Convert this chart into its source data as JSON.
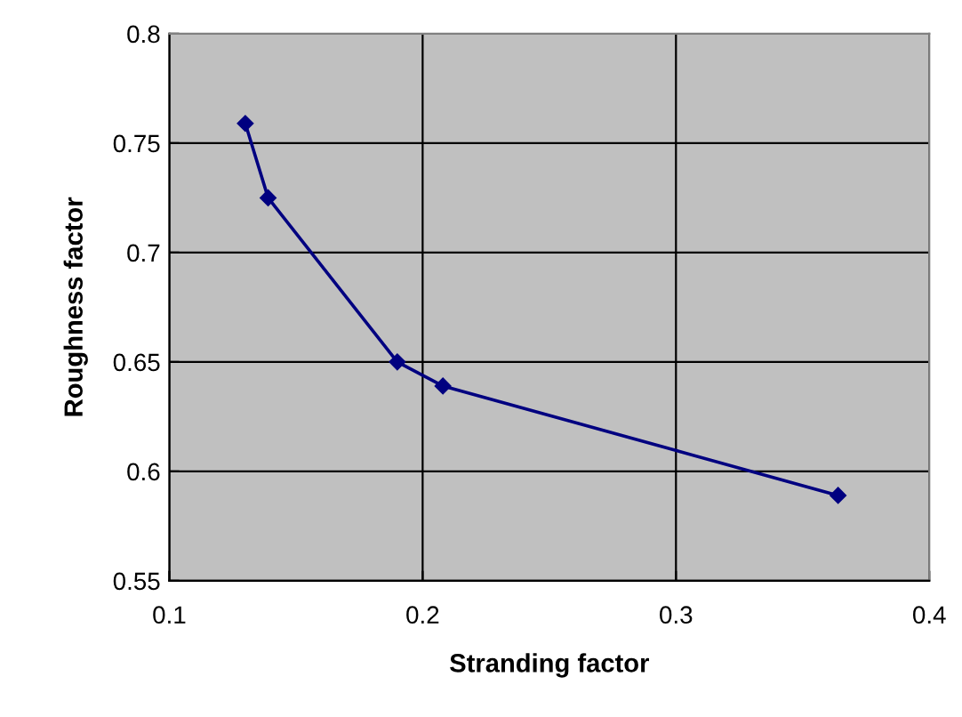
{
  "chart_data": {
    "type": "line",
    "xlabel": "Stranding factor",
    "ylabel": "Roughness factor",
    "x": [
      0.13,
      0.139,
      0.19,
      0.208,
      0.364
    ],
    "series": [
      {
        "color": "#000080",
        "values": [
          0.759,
          0.725,
          0.65,
          0.639,
          0.589
        ]
      }
    ],
    "xlim": [
      0.1,
      0.4
    ],
    "xticks": [
      0.1,
      0.2,
      0.3,
      0.4
    ],
    "ylim": [
      0.55,
      0.8
    ],
    "yticks": [
      0.55,
      0.6,
      0.65,
      0.7,
      0.75,
      0.8
    ],
    "grid": true,
    "marker": "diamond",
    "line_style": "solid"
  }
}
